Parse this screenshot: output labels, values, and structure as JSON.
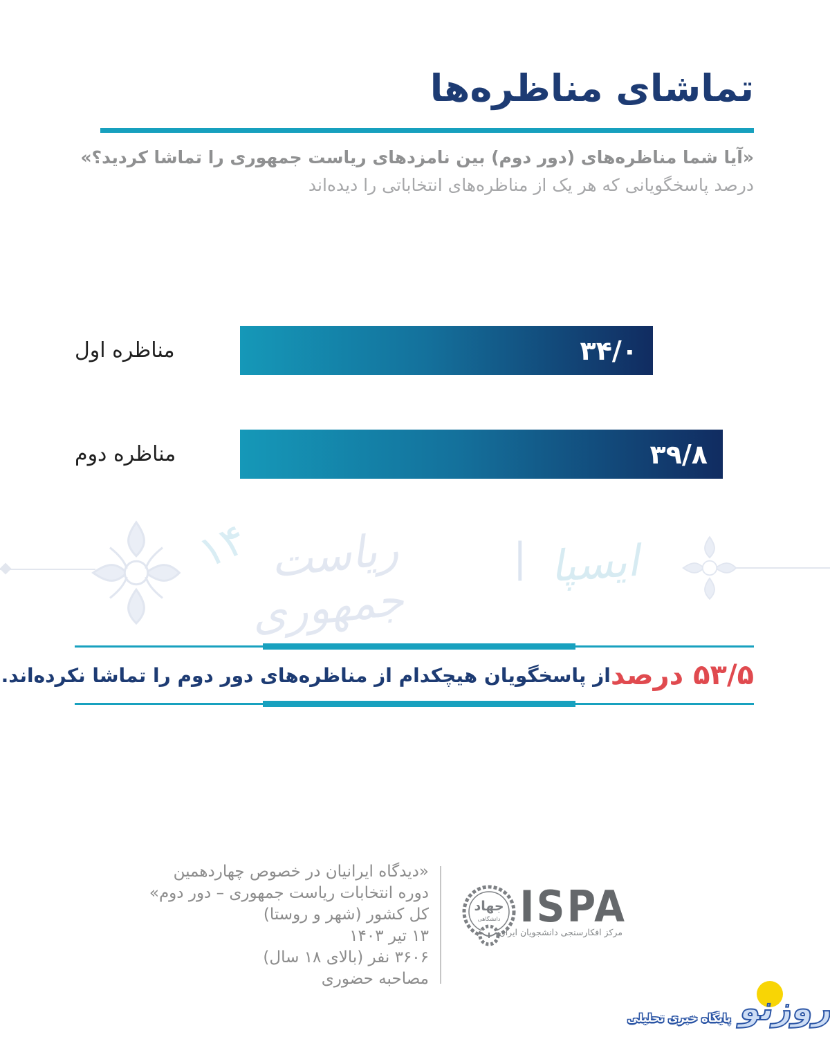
{
  "page": {
    "title": "تماشای مناظره‌ها",
    "question": "«آیا شما مناظره‌های (دور دوم) بین نامزدهای ریاست جمهوری را تماشا کردید؟»",
    "subtitle": "درصد پاسخگویانی که هر یک از مناظره‌های انتخاباتی را دیده‌اند"
  },
  "chart_data": {
    "type": "bar",
    "orientation": "horizontal",
    "title": "تماشای مناظره‌ها",
    "categories": [
      "مناظره اول",
      "مناظره دوم"
    ],
    "values": [
      34.0,
      39.8
    ],
    "value_labels": [
      "۳۴/۰",
      "۳۹/۸"
    ],
    "xlim": [
      0,
      42
    ],
    "grid": false,
    "bar_gradient": [
      "#1598b8",
      "#112c61"
    ],
    "value_label_color": "#ffffff"
  },
  "callout": {
    "highlight": "۵۳/۵ درصد",
    "body": "از پاسخگویان هیچکدام از مناظره‌های دور دوم را تماشا نکرده‌اند.",
    "highlight_color": "#e04a4f",
    "body_color": "#1d3b73"
  },
  "watermark": {
    "ispa_calligraphy": "ایسپا",
    "separator": "|",
    "calligraphy": "ریاست جمهوری",
    "number": "۱۴"
  },
  "footer": {
    "survey_lines": [
      "«دیدگاه ایرانیان در خصوص چهاردهمین",
      "دوره انتخابات ریاست جمهوری – دور دوم»",
      "کل کشور (شهر و روستا)",
      "۱۳ تیر ۱۴۰۳",
      "۳۶۰۶ نفر (بالای ۱۸ سال)",
      "مصاحبه حضوری"
    ],
    "emblem": {
      "top": "جهاد",
      "bottom": "دانشگاهی"
    },
    "ispa_wordmark": "ISPA",
    "ispa_subtitle": "مرکز افکارسنجی دانشجویان ایران"
  },
  "site_logo": {
    "wordmark": "روزنو",
    "tagline": "پایگاه خبری تحلیلی",
    "circle_color": "#f8d505",
    "letter_color": "#2b55a5"
  },
  "colors": {
    "title_navy": "#1d3b73",
    "teal": "#17a0be",
    "red": "#e04a4f",
    "subtitle_gray": "#8f9091",
    "footer_gray": "#8c8c8c"
  }
}
